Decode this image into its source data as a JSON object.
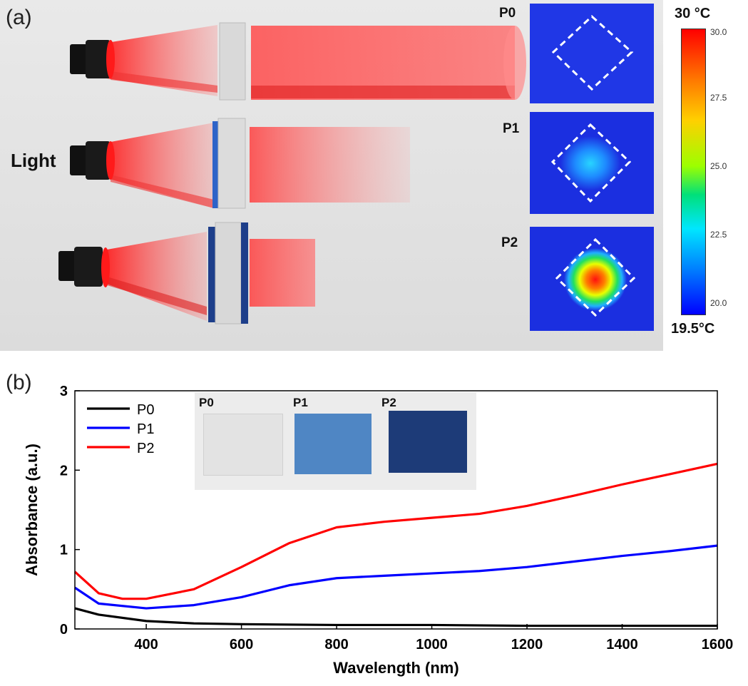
{
  "panel_a": {
    "label": "(a)",
    "light_label": "Light",
    "samples": [
      {
        "name": "P0"
      },
      {
        "name": "P1"
      },
      {
        "name": "P2"
      }
    ],
    "colorbar": {
      "max_label": "30 °C",
      "min_label": "19.5°C",
      "ticks": [
        "30.0",
        "27.5",
        "25.0",
        "22.5",
        "20.0"
      ]
    }
  },
  "panel_b": {
    "label": "(b)",
    "inset_labels": [
      "P0",
      "P1",
      "P2"
    ]
  },
  "chart_data": {
    "type": "line",
    "title": "",
    "xlabel": "Wavelength (nm)",
    "ylabel": "Absorbance (a.u.)",
    "xlim": [
      250,
      1600
    ],
    "ylim": [
      0,
      3
    ],
    "xticks": [
      "400",
      "600",
      "800",
      "1000",
      "1200",
      "1400",
      "1600"
    ],
    "yticks": [
      "0",
      "1",
      "2",
      "3"
    ],
    "legend_position": "top-left",
    "series": [
      {
        "name": "P0",
        "color": "#000000",
        "x": [
          250,
          300,
          400,
          500,
          600,
          800,
          1000,
          1200,
          1400,
          1600
        ],
        "y": [
          0.26,
          0.18,
          0.1,
          0.07,
          0.06,
          0.05,
          0.05,
          0.04,
          0.04,
          0.04
        ]
      },
      {
        "name": "P1",
        "color": "#0000ff",
        "x": [
          250,
          300,
          400,
          500,
          600,
          700,
          800,
          900,
          1000,
          1100,
          1200,
          1300,
          1400,
          1500,
          1600
        ],
        "y": [
          0.52,
          0.32,
          0.26,
          0.3,
          0.4,
          0.55,
          0.64,
          0.67,
          0.7,
          0.73,
          0.78,
          0.85,
          0.92,
          0.98,
          1.05
        ]
      },
      {
        "name": "P2",
        "color": "#ff0000",
        "x": [
          250,
          300,
          350,
          400,
          500,
          600,
          700,
          800,
          900,
          1000,
          1100,
          1200,
          1300,
          1400,
          1500,
          1600
        ],
        "y": [
          0.72,
          0.45,
          0.38,
          0.38,
          0.5,
          0.78,
          1.08,
          1.28,
          1.35,
          1.4,
          1.45,
          1.55,
          1.68,
          1.82,
          1.95,
          2.08
        ]
      }
    ]
  }
}
